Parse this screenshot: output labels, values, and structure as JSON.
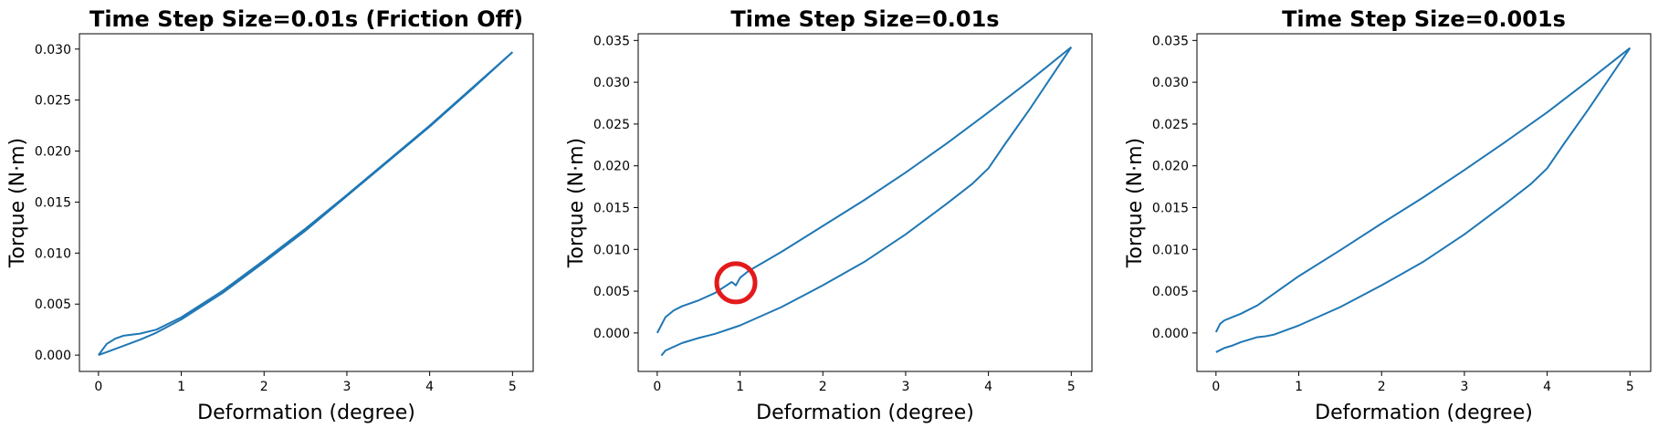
{
  "chart_data": [
    {
      "type": "line",
      "title": "Time Step Size=0.01s (Friction Off)",
      "xlabel": "Deformation (degree)",
      "ylabel": "Torque (N·m)",
      "xlim": [
        -0.23,
        5.25
      ],
      "ylim": [
        -0.0016,
        0.0315
      ],
      "xticks": [
        0,
        1,
        2,
        3,
        4,
        5
      ],
      "xtick_labels": [
        "0",
        "1",
        "2",
        "3",
        "4",
        "5"
      ],
      "yticks": [
        0.0,
        0.005,
        0.01,
        0.015,
        0.02,
        0.025,
        0.03
      ],
      "ytick_labels": [
        "0.000",
        "0.005",
        "0.010",
        "0.015",
        "0.020",
        "0.025",
        "0.030"
      ],
      "grid": false,
      "color": "#1f77b4",
      "series": [
        {
          "values_x": [
            0,
            0.1,
            0.2,
            0.3,
            0.5,
            0.7,
            1.0,
            1.5,
            2.0,
            2.5,
            3.0,
            3.5,
            4.0,
            4.5,
            5.0
          ],
          "values_y": [
            0.0,
            0.0011,
            0.0016,
            0.0019,
            0.0021,
            0.0025,
            0.0037,
            0.0063,
            0.0093,
            0.0124,
            0.0157,
            0.0191,
            0.0225,
            0.0261,
            0.0297
          ]
        },
        {
          "values_x": [
            5.0,
            4.5,
            4.0,
            3.5,
            3.0,
            2.5,
            2.0,
            1.5,
            1.0,
            0.7,
            0.5,
            0.3,
            0.1,
            0
          ],
          "values_y": [
            0.0297,
            0.026,
            0.0224,
            0.019,
            0.0156,
            0.0122,
            0.0091,
            0.0061,
            0.0035,
            0.0022,
            0.0015,
            0.0009,
            0.0003,
            0.0
          ]
        }
      ]
    },
    {
      "type": "line",
      "title": "Time Step Size=0.01s",
      "xlabel": "Deformation (degree)",
      "ylabel": "Torque (N·m)",
      "xlim": [
        -0.23,
        5.25
      ],
      "ylim": [
        -0.0046,
        0.0358
      ],
      "xticks": [
        0,
        1,
        2,
        3,
        4,
        5
      ],
      "xtick_labels": [
        "0",
        "1",
        "2",
        "3",
        "4",
        "5"
      ],
      "yticks": [
        0.0,
        0.005,
        0.01,
        0.015,
        0.02,
        0.025,
        0.03,
        0.035
      ],
      "ytick_labels": [
        "0.000",
        "0.005",
        "0.010",
        "0.015",
        "0.020",
        "0.025",
        "0.030",
        "0.035"
      ],
      "grid": false,
      "color": "#1f77b4",
      "annotation": {
        "type": "circle",
        "x": 0.95,
        "y": 0.006,
        "color": "#e31a1c"
      },
      "series": [
        {
          "values_x": [
            0,
            0.1,
            0.2,
            0.3,
            0.5,
            0.7,
            0.9,
            0.95,
            1.0,
            1.1,
            1.5,
            2.0,
            2.5,
            3.0,
            3.5,
            4.0,
            4.5,
            5.0
          ],
          "values_y": [
            0.0,
            0.0019,
            0.0027,
            0.0032,
            0.0039,
            0.0048,
            0.0061,
            0.0057,
            0.0066,
            0.0074,
            0.0097,
            0.0128,
            0.0159,
            0.0192,
            0.0227,
            0.0264,
            0.0302,
            0.0342
          ]
        },
        {
          "values_x": [
            5.0,
            4.5,
            4.2,
            4.0,
            3.8,
            3.5,
            3.0,
            2.5,
            2.0,
            1.5,
            1.0,
            0.7,
            0.5,
            0.3,
            0.1,
            0.05
          ],
          "values_y": [
            0.0342,
            0.0268,
            0.0226,
            0.0197,
            0.0178,
            0.0155,
            0.0118,
            0.0085,
            0.0057,
            0.0031,
            0.0009,
            -0.0001,
            -0.0006,
            -0.0012,
            -0.0021,
            -0.0027
          ]
        }
      ]
    },
    {
      "type": "line",
      "title": "Time Step Size=0.001s",
      "xlabel": "Deformation (degree)",
      "ylabel": "Torque (N·m)",
      "xlim": [
        -0.23,
        5.25
      ],
      "ylim": [
        -0.0046,
        0.0358
      ],
      "xticks": [
        0,
        1,
        2,
        3,
        4,
        5
      ],
      "xtick_labels": [
        "0",
        "1",
        "2",
        "3",
        "4",
        "5"
      ],
      "yticks": [
        0.0,
        0.005,
        0.01,
        0.015,
        0.02,
        0.025,
        0.03,
        0.035
      ],
      "ytick_labels": [
        "0.000",
        "0.005",
        "0.010",
        "0.015",
        "0.020",
        "0.025",
        "0.030",
        "0.035"
      ],
      "grid": false,
      "color": "#1f77b4",
      "series": [
        {
          "values_x": [
            0,
            0.05,
            0.1,
            0.2,
            0.3,
            0.5,
            0.7,
            1.0,
            1.5,
            2.0,
            2.5,
            3.0,
            3.5,
            4.0,
            4.5,
            5.0
          ],
          "values_y": [
            0.0001,
            0.0011,
            0.0015,
            0.0019,
            0.0023,
            0.0033,
            0.0047,
            0.0068,
            0.0099,
            0.0131,
            0.0162,
            0.0195,
            0.0229,
            0.0264,
            0.0302,
            0.0341
          ]
        },
        {
          "values_x": [
            5.0,
            4.5,
            4.2,
            4.0,
            3.8,
            3.5,
            3.0,
            2.5,
            2.0,
            1.5,
            1.0,
            0.7,
            0.6,
            0.5,
            0.4,
            0.3,
            0.2,
            0.1,
            0
          ],
          "values_y": [
            0.0341,
            0.0268,
            0.0226,
            0.0197,
            0.0178,
            0.0155,
            0.0118,
            0.0085,
            0.0057,
            0.0031,
            0.0009,
            -0.0002,
            -0.0004,
            -0.0005,
            -0.0008,
            -0.0011,
            -0.0015,
            -0.0018,
            -0.0023
          ]
        }
      ]
    }
  ]
}
